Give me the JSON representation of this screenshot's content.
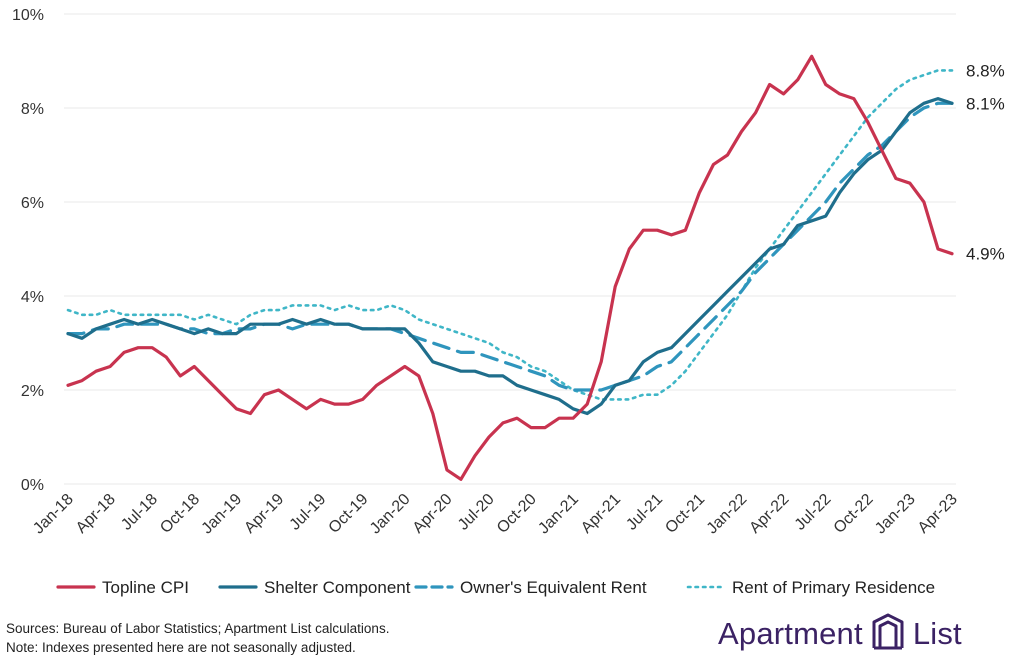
{
  "chart_data": {
    "type": "line",
    "title": "",
    "xlabel": "",
    "ylabel": "",
    "ylim": [
      0,
      10
    ],
    "y_ticks": [
      0,
      2,
      4,
      6,
      8,
      10
    ],
    "y_tick_labels": [
      "0%",
      "2%",
      "4%",
      "6%",
      "8%",
      "10%"
    ],
    "x_tick_labels": [
      "Jan-18",
      "Apr-18",
      "Jul-18",
      "Oct-18",
      "Jan-19",
      "Apr-19",
      "Jul-19",
      "Oct-19",
      "Jan-20",
      "Apr-20",
      "Jul-20",
      "Oct-20",
      "Jan-21",
      "Apr-21",
      "Jul-21",
      "Oct-21",
      "Jan-22",
      "Apr-22",
      "Jul-22",
      "Oct-22",
      "Jan-23",
      "Apr-23"
    ],
    "x": [
      "Jan-18",
      "Feb-18",
      "Mar-18",
      "Apr-18",
      "May-18",
      "Jun-18",
      "Jul-18",
      "Aug-18",
      "Sep-18",
      "Oct-18",
      "Nov-18",
      "Dec-18",
      "Jan-19",
      "Feb-19",
      "Mar-19",
      "Apr-19",
      "May-19",
      "Jun-19",
      "Jul-19",
      "Aug-19",
      "Sep-19",
      "Oct-19",
      "Nov-19",
      "Dec-19",
      "Jan-20",
      "Feb-20",
      "Mar-20",
      "Apr-20",
      "May-20",
      "Jun-20",
      "Jul-20",
      "Aug-20",
      "Sep-20",
      "Oct-20",
      "Nov-20",
      "Dec-20",
      "Jan-21",
      "Feb-21",
      "Mar-21",
      "Apr-21",
      "May-21",
      "Jun-21",
      "Jul-21",
      "Aug-21",
      "Sep-21",
      "Oct-21",
      "Nov-21",
      "Dec-21",
      "Jan-22",
      "Feb-22",
      "Mar-22",
      "Apr-22",
      "May-22",
      "Jun-22",
      "Jul-22",
      "Aug-22",
      "Sep-22",
      "Oct-22",
      "Nov-22",
      "Dec-22",
      "Jan-23",
      "Feb-23",
      "Mar-23",
      "Apr-23"
    ],
    "series": [
      {
        "name": "Topline CPI",
        "color": "#c8334f",
        "style": "solid",
        "values": [
          2.1,
          2.2,
          2.4,
          2.5,
          2.8,
          2.9,
          2.9,
          2.7,
          2.3,
          2.5,
          2.2,
          1.9,
          1.6,
          1.5,
          1.9,
          2.0,
          1.8,
          1.6,
          1.8,
          1.7,
          1.7,
          1.8,
          2.1,
          2.3,
          2.5,
          2.3,
          1.5,
          0.3,
          0.1,
          0.6,
          1.0,
          1.3,
          1.4,
          1.2,
          1.2,
          1.4,
          1.4,
          1.7,
          2.6,
          4.2,
          5.0,
          5.4,
          5.4,
          5.3,
          5.4,
          6.2,
          6.8,
          7.0,
          7.5,
          7.9,
          8.5,
          8.3,
          8.6,
          9.1,
          8.5,
          8.3,
          8.2,
          7.7,
          7.1,
          6.5,
          6.4,
          6.0,
          5.0,
          4.9
        ]
      },
      {
        "name": "Shelter Component",
        "color": "#1f6e8c",
        "style": "solid",
        "values": [
          3.2,
          3.1,
          3.3,
          3.4,
          3.5,
          3.4,
          3.5,
          3.4,
          3.3,
          3.2,
          3.3,
          3.2,
          3.2,
          3.4,
          3.4,
          3.4,
          3.5,
          3.4,
          3.5,
          3.4,
          3.4,
          3.3,
          3.3,
          3.3,
          3.3,
          3.0,
          2.6,
          2.5,
          2.4,
          2.4,
          2.3,
          2.3,
          2.1,
          2.0,
          1.9,
          1.8,
          1.6,
          1.5,
          1.7,
          2.1,
          2.2,
          2.6,
          2.8,
          2.9,
          3.2,
          3.5,
          3.8,
          4.1,
          4.4,
          4.7,
          5.0,
          5.1,
          5.5,
          5.6,
          5.7,
          6.2,
          6.6,
          6.9,
          7.1,
          7.5,
          7.9,
          8.1,
          8.2,
          8.1
        ]
      },
      {
        "name": "Owner's Equivalent Rent",
        "color": "#2f95bd",
        "style": "dashed",
        "values": [
          3.2,
          3.2,
          3.3,
          3.3,
          3.4,
          3.4,
          3.4,
          3.4,
          3.3,
          3.3,
          3.2,
          3.2,
          3.3,
          3.3,
          3.4,
          3.4,
          3.3,
          3.4,
          3.4,
          3.4,
          3.4,
          3.3,
          3.3,
          3.3,
          3.2,
          3.1,
          3.0,
          2.9,
          2.8,
          2.8,
          2.7,
          2.6,
          2.5,
          2.4,
          2.3,
          2.1,
          2.0,
          2.0,
          2.0,
          2.1,
          2.2,
          2.3,
          2.5,
          2.6,
          2.9,
          3.2,
          3.5,
          3.8,
          4.1,
          4.5,
          4.8,
          5.1,
          5.4,
          5.7,
          6.0,
          6.4,
          6.7,
          7.0,
          7.2,
          7.5,
          7.8,
          8.0,
          8.1,
          8.1
        ]
      },
      {
        "name": "Rent of Primary Residence",
        "color": "#3fb6c7",
        "style": "dotted",
        "values": [
          3.7,
          3.6,
          3.6,
          3.7,
          3.6,
          3.6,
          3.6,
          3.6,
          3.6,
          3.5,
          3.6,
          3.5,
          3.4,
          3.6,
          3.7,
          3.7,
          3.8,
          3.8,
          3.8,
          3.7,
          3.8,
          3.7,
          3.7,
          3.8,
          3.7,
          3.5,
          3.4,
          3.3,
          3.2,
          3.1,
          3.0,
          2.8,
          2.7,
          2.5,
          2.4,
          2.2,
          2.0,
          1.9,
          1.8,
          1.8,
          1.8,
          1.9,
          1.9,
          2.1,
          2.4,
          2.8,
          3.2,
          3.6,
          4.1,
          4.6,
          5.0,
          5.4,
          5.8,
          6.2,
          6.6,
          7.0,
          7.4,
          7.8,
          8.1,
          8.4,
          8.6,
          8.7,
          8.8,
          8.8
        ]
      }
    ],
    "end_labels": [
      "8.8%",
      "8.1%",
      "4.9%"
    ],
    "legend": [
      "Topline CPI",
      "Shelter Component",
      "Owner's Equivalent Rent",
      "Rent of Primary Residence"
    ],
    "legend_position": "bottom",
    "grid": true
  },
  "footer": {
    "source": "Sources: Bureau of Labor Statistics; Apartment List calculations.",
    "note": "Note: Indexes presented here are not seasonally adjusted."
  },
  "logo": {
    "word1": "Apartment",
    "word2": "List",
    "mark": "apartment-list-logo-icon",
    "color": "#3b2264"
  }
}
